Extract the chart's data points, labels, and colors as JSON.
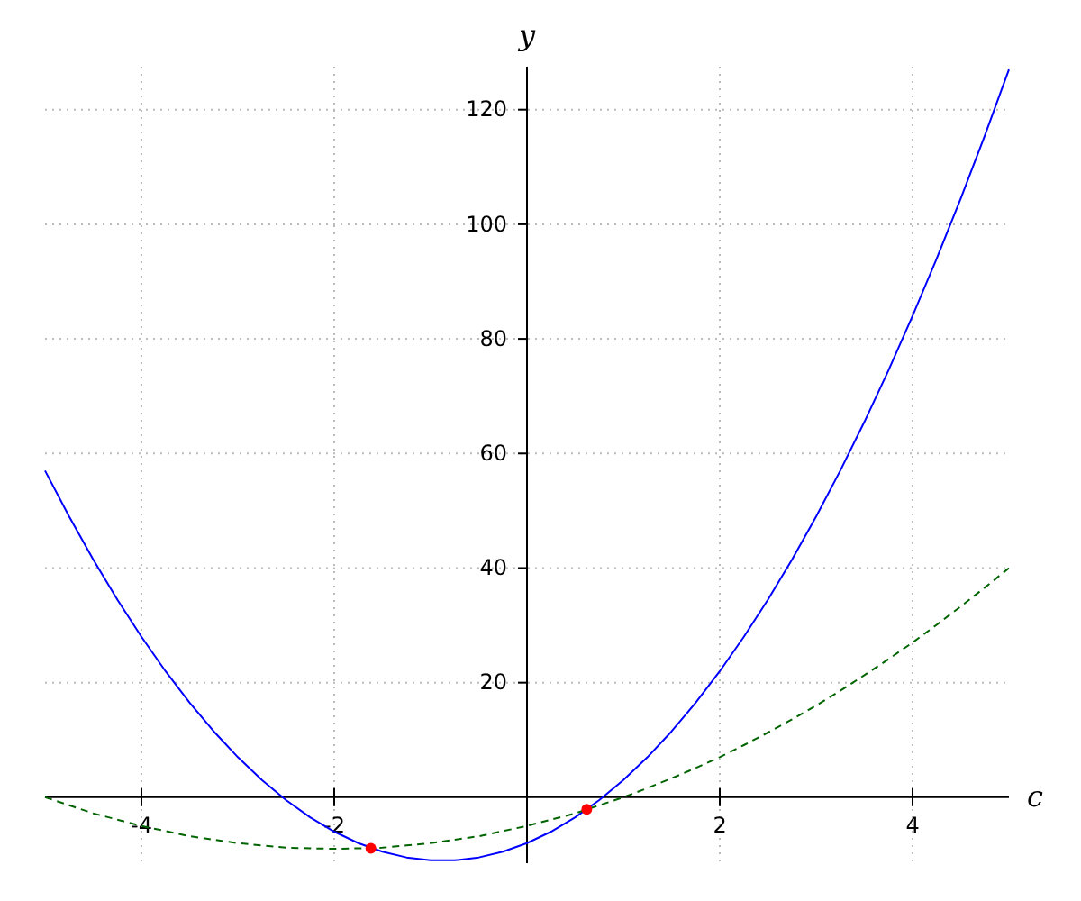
{
  "chart_data": {
    "type": "line",
    "xlabel": "c",
    "ylabel": "y",
    "x": [
      -5,
      -4.75,
      -4.5,
      -4.25,
      -4,
      -3.75,
      -3.5,
      -3.25,
      -3,
      -2.75,
      -2.5,
      -2.25,
      -2,
      -1.75,
      -1.5,
      -1.25,
      -1,
      -0.75,
      -0.5,
      -0.25,
      0,
      0.25,
      0.5,
      0.75,
      1,
      1.25,
      1.5,
      1.75,
      2,
      2.25,
      2.5,
      2.75,
      3,
      3.25,
      3.5,
      3.75,
      4,
      4.25,
      4.5,
      4.75,
      5
    ],
    "series": [
      {
        "color": "#0000ff",
        "line_style": "solid",
        "values": [
          57,
          49,
          41.5,
          34.5,
          28,
          22,
          16.5,
          11.5,
          7,
          3,
          -0.5,
          -3.5,
          -6,
          -8,
          -9.5,
          -10.5,
          -11,
          -11,
          -10.5,
          -9.5,
          -8,
          -6,
          -3.5,
          -0.5,
          3,
          7,
          11.5,
          16.5,
          22,
          28,
          34.5,
          41.5,
          49,
          57,
          65.5,
          74.5,
          84,
          94,
          104.5,
          115.5,
          127
        ]
      },
      {
        "color": "#006400",
        "line_style": "dashed",
        "values": [
          0,
          -1.4,
          -2.8,
          -3.9,
          -5,
          -5.9,
          -6.8,
          -7.4,
          -8,
          -8.4,
          -8.8,
          -8.9,
          -9,
          -8.9,
          -8.8,
          -8.4,
          -8,
          -7.4,
          -6.8,
          -5.9,
          -5,
          -3.9,
          -2.8,
          -1.4,
          0,
          1.6,
          3.3,
          5.1,
          7,
          9.1,
          11.3,
          13.6,
          16,
          18.6,
          21.3,
          24.1,
          27,
          30.1,
          33.3,
          36.6,
          40
        ]
      },
      {
        "type": "scatter",
        "color": "#ff0000",
        "marker": "circle",
        "x": [
          -1.62,
          0.62
        ],
        "values": [
          -8.9,
          -2.1
        ]
      }
    ],
    "xlim": [
      -5,
      5
    ],
    "ylim": [
      -11.5,
      127.5
    ],
    "xticks": [
      -4,
      -2,
      2,
      4
    ],
    "yticks": [
      20,
      40,
      60,
      80,
      100,
      120
    ],
    "grid": true
  }
}
